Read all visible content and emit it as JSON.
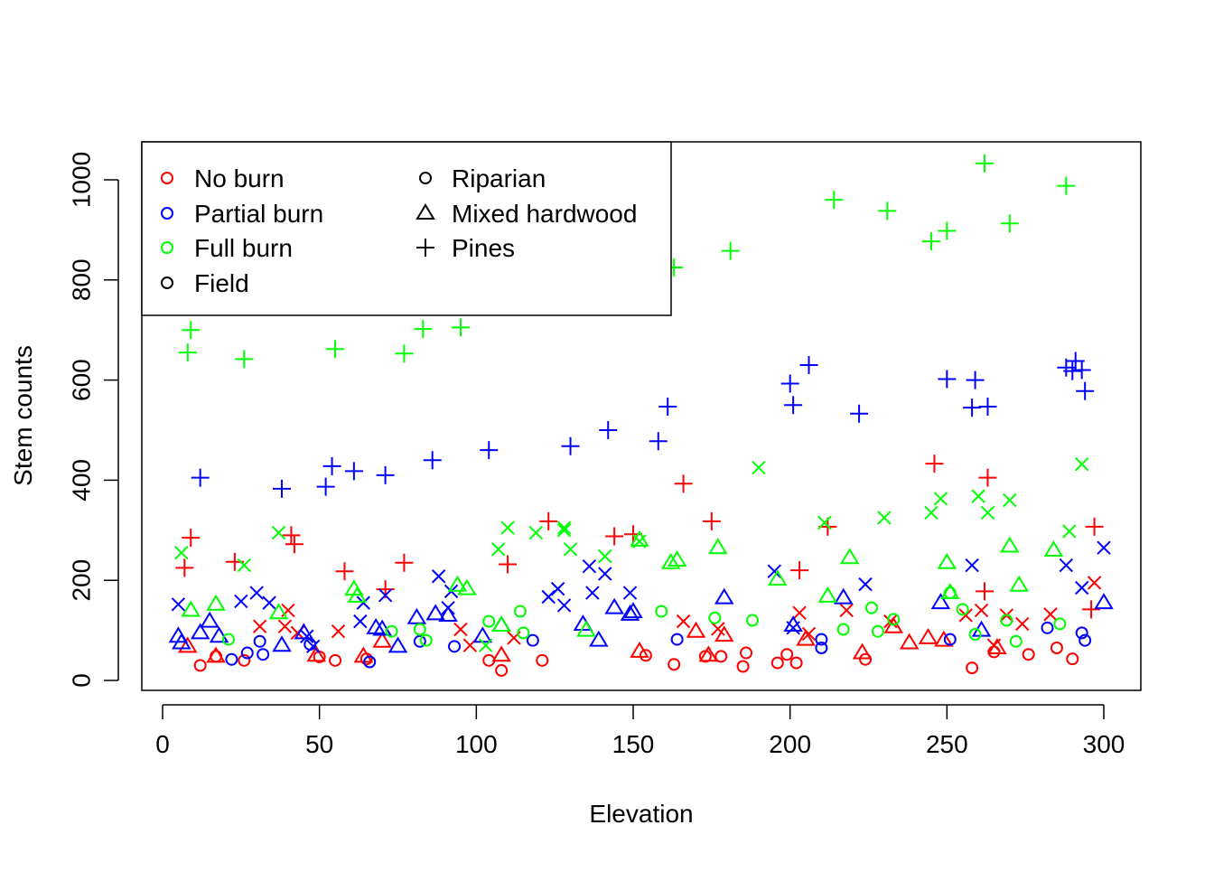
{
  "chart_data": {
    "type": "scatter",
    "xlabel": "Elevation",
    "ylabel": "Stem counts",
    "xlim": [
      0,
      300
    ],
    "ylim": [
      0,
      1000
    ],
    "x_ticks": [
      0,
      50,
      100,
      150,
      200,
      250,
      300
    ],
    "y_ticks": [
      0,
      200,
      400,
      600,
      800,
      1000
    ],
    "grid": false,
    "legend_placement": "top-left",
    "legend": {
      "colors": [
        {
          "label": "No burn",
          "color": "#ff0000"
        },
        {
          "label": "Partial burn",
          "color": "#0000ff"
        },
        {
          "label": "Full burn",
          "color": "#00ff00"
        }
      ],
      "shapes": [
        {
          "label": "Riparian",
          "shape": "circle"
        },
        {
          "label": "Mixed hardwood",
          "shape": "triangle"
        },
        {
          "label": "Pines",
          "shape": "plus"
        },
        {
          "label": "Field",
          "shape": "cross"
        }
      ]
    },
    "series": [
      {
        "burn": "No burn",
        "habitat": "Riparian",
        "color": "#ff0000",
        "shape": "circle",
        "points": [
          [
            12,
            30
          ],
          [
            17,
            48
          ],
          [
            26,
            40
          ],
          [
            50,
            47
          ],
          [
            55,
            40
          ],
          [
            65,
            43
          ],
          [
            104,
            40
          ],
          [
            108,
            20
          ],
          [
            121,
            40
          ],
          [
            154,
            50
          ],
          [
            163,
            32
          ],
          [
            173,
            48
          ],
          [
            178,
            48
          ],
          [
            185,
            28
          ],
          [
            186,
            55
          ],
          [
            196,
            35
          ],
          [
            199,
            52
          ],
          [
            202,
            35
          ],
          [
            224,
            42
          ],
          [
            258,
            25
          ],
          [
            265,
            57
          ],
          [
            276,
            52
          ],
          [
            285,
            65
          ],
          [
            290,
            43
          ]
        ]
      },
      {
        "burn": "No burn",
        "habitat": "Mixed hardwood",
        "color": "#ff0000",
        "shape": "triangle",
        "points": [
          [
            8,
            68
          ],
          [
            17,
            48
          ],
          [
            49,
            50
          ],
          [
            64,
            48
          ],
          [
            70,
            78
          ],
          [
            108,
            50
          ],
          [
            152,
            58
          ],
          [
            170,
            98
          ],
          [
            174,
            50
          ],
          [
            179,
            90
          ],
          [
            205,
            82
          ],
          [
            223,
            55
          ],
          [
            233,
            107
          ],
          [
            238,
            75
          ],
          [
            244,
            85
          ],
          [
            249,
            80
          ],
          [
            266,
            65
          ]
        ]
      },
      {
        "burn": "No burn",
        "habitat": "Pines",
        "color": "#ff0000",
        "shape": "plus",
        "points": [
          [
            7,
            225
          ],
          [
            9,
            285
          ],
          [
            23,
            237
          ],
          [
            41,
            290
          ],
          [
            42,
            272
          ],
          [
            58,
            218
          ],
          [
            71,
            182
          ],
          [
            77,
            235
          ],
          [
            110,
            232
          ],
          [
            123,
            318
          ],
          [
            144,
            288
          ],
          [
            150,
            292
          ],
          [
            166,
            393
          ],
          [
            175,
            318
          ],
          [
            203,
            220
          ],
          [
            212,
            307
          ],
          [
            246,
            433
          ],
          [
            262,
            178
          ],
          [
            263,
            405
          ],
          [
            296,
            142
          ],
          [
            297,
            307
          ]
        ]
      },
      {
        "burn": "No burn",
        "habitat": "Field",
        "color": "#ff0000",
        "shape": "cross",
        "points": [
          [
            31,
            108
          ],
          [
            39,
            108
          ],
          [
            40,
            140
          ],
          [
            43,
            95
          ],
          [
            56,
            98
          ],
          [
            95,
            102
          ],
          [
            98,
            70
          ],
          [
            112,
            85
          ],
          [
            166,
            118
          ],
          [
            177,
            103
          ],
          [
            203,
            135
          ],
          [
            206,
            93
          ],
          [
            218,
            140
          ],
          [
            232,
            118
          ],
          [
            256,
            130
          ],
          [
            261,
            140
          ],
          [
            265,
            70
          ],
          [
            269,
            130
          ],
          [
            274,
            113
          ],
          [
            283,
            132
          ],
          [
            297,
            195
          ]
        ]
      },
      {
        "burn": "Partial burn",
        "habitat": "Riparian",
        "color": "#0000ff",
        "shape": "circle",
        "points": [
          [
            22,
            42
          ],
          [
            27,
            55
          ],
          [
            31,
            78
          ],
          [
            32,
            52
          ],
          [
            47,
            72
          ],
          [
            66,
            37
          ],
          [
            82,
            78
          ],
          [
            93,
            68
          ],
          [
            118,
            80
          ],
          [
            164,
            82
          ],
          [
            210,
            65
          ],
          [
            210,
            82
          ],
          [
            251,
            82
          ],
          [
            282,
            105
          ],
          [
            293,
            95
          ],
          [
            294,
            80
          ]
        ]
      },
      {
        "burn": "Partial burn",
        "habitat": "Mixed hardwood",
        "color": "#0000ff",
        "shape": "triangle",
        "points": [
          [
            5,
            88
          ],
          [
            6,
            75
          ],
          [
            12,
            95
          ],
          [
            15,
            118
          ],
          [
            18,
            88
          ],
          [
            38,
            70
          ],
          [
            45,
            95
          ],
          [
            68,
            105
          ],
          [
            70,
            102
          ],
          [
            75,
            68
          ],
          [
            81,
            125
          ],
          [
            87,
            133
          ],
          [
            91,
            130
          ],
          [
            102,
            88
          ],
          [
            108,
            110
          ],
          [
            134,
            112
          ],
          [
            139,
            80
          ],
          [
            144,
            145
          ],
          [
            149,
            132
          ],
          [
            150,
            137
          ],
          [
            179,
            165
          ],
          [
            201,
            110
          ],
          [
            217,
            165
          ],
          [
            248,
            155
          ],
          [
            261,
            100
          ],
          [
            300,
            155
          ]
        ]
      },
      {
        "burn": "Partial burn",
        "habitat": "Pines",
        "color": "#0000ff",
        "shape": "plus",
        "points": [
          [
            12,
            405
          ],
          [
            38,
            383
          ],
          [
            52,
            387
          ],
          [
            54,
            428
          ],
          [
            61,
            418
          ],
          [
            71,
            410
          ],
          [
            86,
            440
          ],
          [
            104,
            460
          ],
          [
            130,
            468
          ],
          [
            142,
            500
          ],
          [
            158,
            478
          ],
          [
            161,
            547
          ],
          [
            200,
            593
          ],
          [
            201,
            550
          ],
          [
            206,
            630
          ],
          [
            222,
            533
          ],
          [
            250,
            602
          ],
          [
            258,
            545
          ],
          [
            259,
            600
          ],
          [
            263,
            547
          ],
          [
            288,
            625
          ],
          [
            290,
            618
          ],
          [
            291,
            638
          ],
          [
            293,
            620
          ],
          [
            294,
            578
          ]
        ]
      },
      {
        "burn": "Partial burn",
        "habitat": "Field",
        "color": "#0000ff",
        "shape": "cross",
        "points": [
          [
            5,
            152
          ],
          [
            25,
            158
          ],
          [
            30,
            175
          ],
          [
            34,
            155
          ],
          [
            46,
            88
          ],
          [
            48,
            68
          ],
          [
            63,
            118
          ],
          [
            64,
            155
          ],
          [
            71,
            170
          ],
          [
            88,
            208
          ],
          [
            91,
            145
          ],
          [
            92,
            178
          ],
          [
            123,
            167
          ],
          [
            126,
            183
          ],
          [
            128,
            150
          ],
          [
            136,
            228
          ],
          [
            137,
            175
          ],
          [
            141,
            213
          ],
          [
            149,
            175
          ],
          [
            195,
            218
          ],
          [
            201,
            105
          ],
          [
            224,
            192
          ],
          [
            258,
            230
          ],
          [
            288,
            230
          ],
          [
            293,
            185
          ],
          [
            300,
            265
          ]
        ]
      },
      {
        "burn": "Full burn",
        "habitat": "Riparian",
        "color": "#00ff00",
        "shape": "circle",
        "points": [
          [
            21,
            82
          ],
          [
            73,
            98
          ],
          [
            82,
            102
          ],
          [
            84,
            80
          ],
          [
            104,
            118
          ],
          [
            114,
            138
          ],
          [
            115,
            95
          ],
          [
            159,
            138
          ],
          [
            176,
            125
          ],
          [
            188,
            120
          ],
          [
            217,
            102
          ],
          [
            226,
            145
          ],
          [
            228,
            98
          ],
          [
            233,
            122
          ],
          [
            251,
            175
          ],
          [
            255,
            142
          ],
          [
            259,
            92
          ],
          [
            269,
            120
          ],
          [
            272,
            78
          ],
          [
            286,
            113
          ]
        ]
      },
      {
        "burn": "Full burn",
        "habitat": "Mixed hardwood",
        "color": "#00ff00",
        "shape": "triangle",
        "points": [
          [
            9,
            140
          ],
          [
            17,
            152
          ],
          [
            37,
            135
          ],
          [
            61,
            182
          ],
          [
            62,
            168
          ],
          [
            94,
            190
          ],
          [
            97,
            183
          ],
          [
            108,
            110
          ],
          [
            135,
            100
          ],
          [
            152,
            280
          ],
          [
            162,
            235
          ],
          [
            164,
            240
          ],
          [
            177,
            265
          ],
          [
            196,
            202
          ],
          [
            212,
            168
          ],
          [
            219,
            245
          ],
          [
            250,
            235
          ],
          [
            251,
            175
          ],
          [
            270,
            268
          ],
          [
            273,
            190
          ],
          [
            284,
            260
          ]
        ]
      },
      {
        "burn": "Full burn",
        "habitat": "Pines",
        "color": "#00ff00",
        "shape": "plus",
        "points": [
          [
            8,
            655
          ],
          [
            9,
            700
          ],
          [
            26,
            642
          ],
          [
            55,
            662
          ],
          [
            77,
            653
          ],
          [
            83,
            702
          ],
          [
            95,
            705
          ],
          [
            163,
            825
          ],
          [
            181,
            858
          ],
          [
            214,
            960
          ],
          [
            231,
            938
          ],
          [
            245,
            877
          ],
          [
            250,
            898
          ],
          [
            262,
            1033
          ],
          [
            270,
            913
          ],
          [
            288,
            988
          ]
        ]
      },
      {
        "burn": "Full burn",
        "habitat": "Field",
        "color": "#00ff00",
        "shape": "cross",
        "points": [
          [
            6,
            255
          ],
          [
            26,
            230
          ],
          [
            37,
            295
          ],
          [
            103,
            70
          ],
          [
            107,
            262
          ],
          [
            110,
            305
          ],
          [
            119,
            295
          ],
          [
            128,
            305
          ],
          [
            128,
            300
          ],
          [
            130,
            262
          ],
          [
            141,
            248
          ],
          [
            152,
            278
          ],
          [
            190,
            425
          ],
          [
            211,
            315
          ],
          [
            230,
            325
          ],
          [
            245,
            335
          ],
          [
            248,
            363
          ],
          [
            260,
            368
          ],
          [
            263,
            335
          ],
          [
            270,
            360
          ],
          [
            289,
            298
          ],
          [
            293,
            432
          ]
        ]
      }
    ]
  }
}
